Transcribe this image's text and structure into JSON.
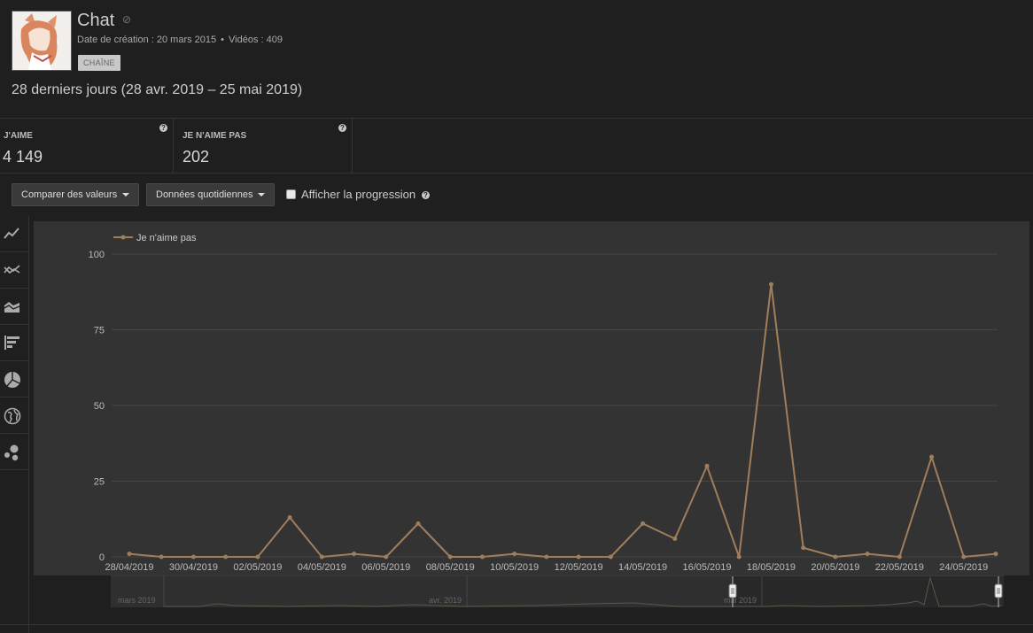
{
  "channel": {
    "name": "Chat",
    "created_label": "Date de création : 20 mars 2015",
    "videos_label": "Vidéos : 409",
    "badge": "CHAÎNE"
  },
  "period": "28 derniers jours (28 avr. 2019 – 25 mai 2019)",
  "metrics": [
    {
      "label": "J'AIME",
      "value": "4 149"
    },
    {
      "label": "JE N'AIME PAS",
      "value": "202"
    }
  ],
  "controls": {
    "compare_label": "Comparer des valeurs",
    "daily_label": "Données quotidiennes",
    "progress_label": "Afficher la progression"
  },
  "sidebar_icons": [
    "line-chart-icon",
    "multi-line-chart-icon",
    "stacked-area-icon",
    "bar-list-icon",
    "pie-chart-icon",
    "globe-icon",
    "bubble-chart-icon"
  ],
  "colors": {
    "series": "#a07e5c",
    "background": "#1f1f1f",
    "plot": "#333333"
  },
  "chart_data": {
    "type": "line",
    "legend": [
      "Je n'aime pas"
    ],
    "legend_position": "top-left",
    "ylim": [
      0,
      100
    ],
    "yticks": [
      0,
      25,
      50,
      75,
      100
    ],
    "grid": true,
    "x": [
      "28/04/2019",
      "29/04/2019",
      "30/04/2019",
      "01/05/2019",
      "02/05/2019",
      "03/05/2019",
      "04/05/2019",
      "05/05/2019",
      "06/05/2019",
      "07/05/2019",
      "08/05/2019",
      "09/05/2019",
      "10/05/2019",
      "11/05/2019",
      "12/05/2019",
      "13/05/2019",
      "14/05/2019",
      "15/05/2019",
      "16/05/2019",
      "17/05/2019",
      "18/05/2019",
      "19/05/2019",
      "20/05/2019",
      "21/05/2019",
      "22/05/2019",
      "23/05/2019",
      "24/05/2019",
      "25/05/2019"
    ],
    "xtick_labels": [
      "28/04/2019",
      "30/04/2019",
      "02/05/2019",
      "04/05/2019",
      "06/05/2019",
      "08/05/2019",
      "10/05/2019",
      "12/05/2019",
      "14/05/2019",
      "16/05/2019",
      "18/05/2019",
      "20/05/2019",
      "22/05/2019",
      "24/05/2019"
    ],
    "series": [
      {
        "name": "Je n'aime pas",
        "values": [
          1,
          0,
          0,
          0,
          0,
          13,
          0,
          1,
          0,
          11,
          0,
          0,
          1,
          0,
          0,
          0,
          11,
          6,
          30,
          0,
          90,
          3,
          0,
          1,
          0,
          33,
          0,
          1
        ]
      }
    ]
  },
  "navigator": {
    "labels": [
      "mars 2019",
      "avr. 2019",
      "mai 2019"
    ]
  }
}
